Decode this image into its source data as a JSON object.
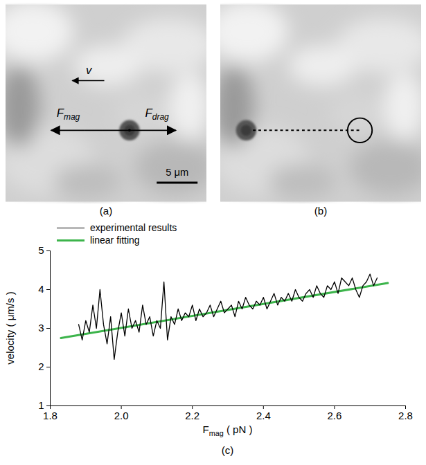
{
  "images": [
    {
      "label": "(a)",
      "velocity": "v",
      "force_left": [
        {
          "text": "F"
        },
        {
          "text": "mag",
          "sub": true
        }
      ],
      "force_right": [
        {
          "text": "F"
        },
        {
          "text": "drag",
          "sub": true
        }
      ],
      "scale_bar": "5 μm"
    },
    {
      "label": "(b)"
    }
  ],
  "chart_data": {
    "type": "line",
    "label": "(c)",
    "xlabel": [
      {
        "text": "F"
      },
      {
        "text": "mag",
        "sub": true
      },
      {
        "text": " ( pN )"
      }
    ],
    "ylabel": "velocity ( μm/s )",
    "xlim": [
      1.8,
      2.8
    ],
    "ylim": [
      1,
      5
    ],
    "xticks": [
      1.8,
      {
        "value": 2,
        "label": "2.0"
      },
      2.2,
      2.4,
      2.6,
      2.8
    ],
    "yticks": [
      1,
      2,
      3,
      4,
      5
    ],
    "legend": "top-left",
    "series": [
      {
        "name": "experimental results",
        "color": "#000000",
        "line_style": "solid",
        "x": [
          1.88,
          1.89,
          1.9,
          1.91,
          1.92,
          1.93,
          1.94,
          1.95,
          1.96,
          1.97,
          1.98,
          1.99,
          2.0,
          2.01,
          2.02,
          2.03,
          2.04,
          2.05,
          2.06,
          2.07,
          2.08,
          2.09,
          2.1,
          2.11,
          2.12,
          2.13,
          2.14,
          2.15,
          2.16,
          2.17,
          2.18,
          2.19,
          2.2,
          2.21,
          2.22,
          2.23,
          2.24,
          2.25,
          2.26,
          2.27,
          2.28,
          2.29,
          2.3,
          2.31,
          2.32,
          2.33,
          2.34,
          2.35,
          2.36,
          2.37,
          2.38,
          2.39,
          2.4,
          2.41,
          2.42,
          2.43,
          2.44,
          2.45,
          2.46,
          2.47,
          2.48,
          2.49,
          2.5,
          2.51,
          2.52,
          2.53,
          2.54,
          2.55,
          2.56,
          2.57,
          2.58,
          2.59,
          2.6,
          2.61,
          2.62,
          2.63,
          2.64,
          2.65,
          2.66,
          2.67,
          2.68,
          2.69,
          2.7,
          2.71,
          2.72
        ],
        "values": [
          3.1,
          2.7,
          3.2,
          2.9,
          3.6,
          3.0,
          4.0,
          3.1,
          2.6,
          3.3,
          2.2,
          2.9,
          3.4,
          2.8,
          3.5,
          3.0,
          3.2,
          2.9,
          3.6,
          3.1,
          3.3,
          2.8,
          3.2,
          3.0,
          4.2,
          2.7,
          3.3,
          3.1,
          3.5,
          3.2,
          3.4,
          3.3,
          3.6,
          3.2,
          3.5,
          3.3,
          3.4,
          3.6,
          3.3,
          3.5,
          3.7,
          3.4,
          3.5,
          3.6,
          3.3,
          3.7,
          3.5,
          3.8,
          3.6,
          3.5,
          3.7,
          3.6,
          3.8,
          3.5,
          3.7,
          3.9,
          3.6,
          3.8,
          3.7,
          3.9,
          3.7,
          4.0,
          3.8,
          3.7,
          3.9,
          4.0,
          3.8,
          4.1,
          3.9,
          3.8,
          4.1,
          4.0,
          4.2,
          3.9,
          4.3,
          4.2,
          4.1,
          4.3,
          4.0,
          3.8,
          4.1,
          4.2,
          4.4,
          4.1,
          4.3
        ]
      },
      {
        "name": "linear fitting",
        "color": "#3cb44b",
        "line_style": "solid",
        "x": [
          1.83,
          2.75
        ],
        "values": [
          2.75,
          4.17
        ]
      }
    ]
  }
}
